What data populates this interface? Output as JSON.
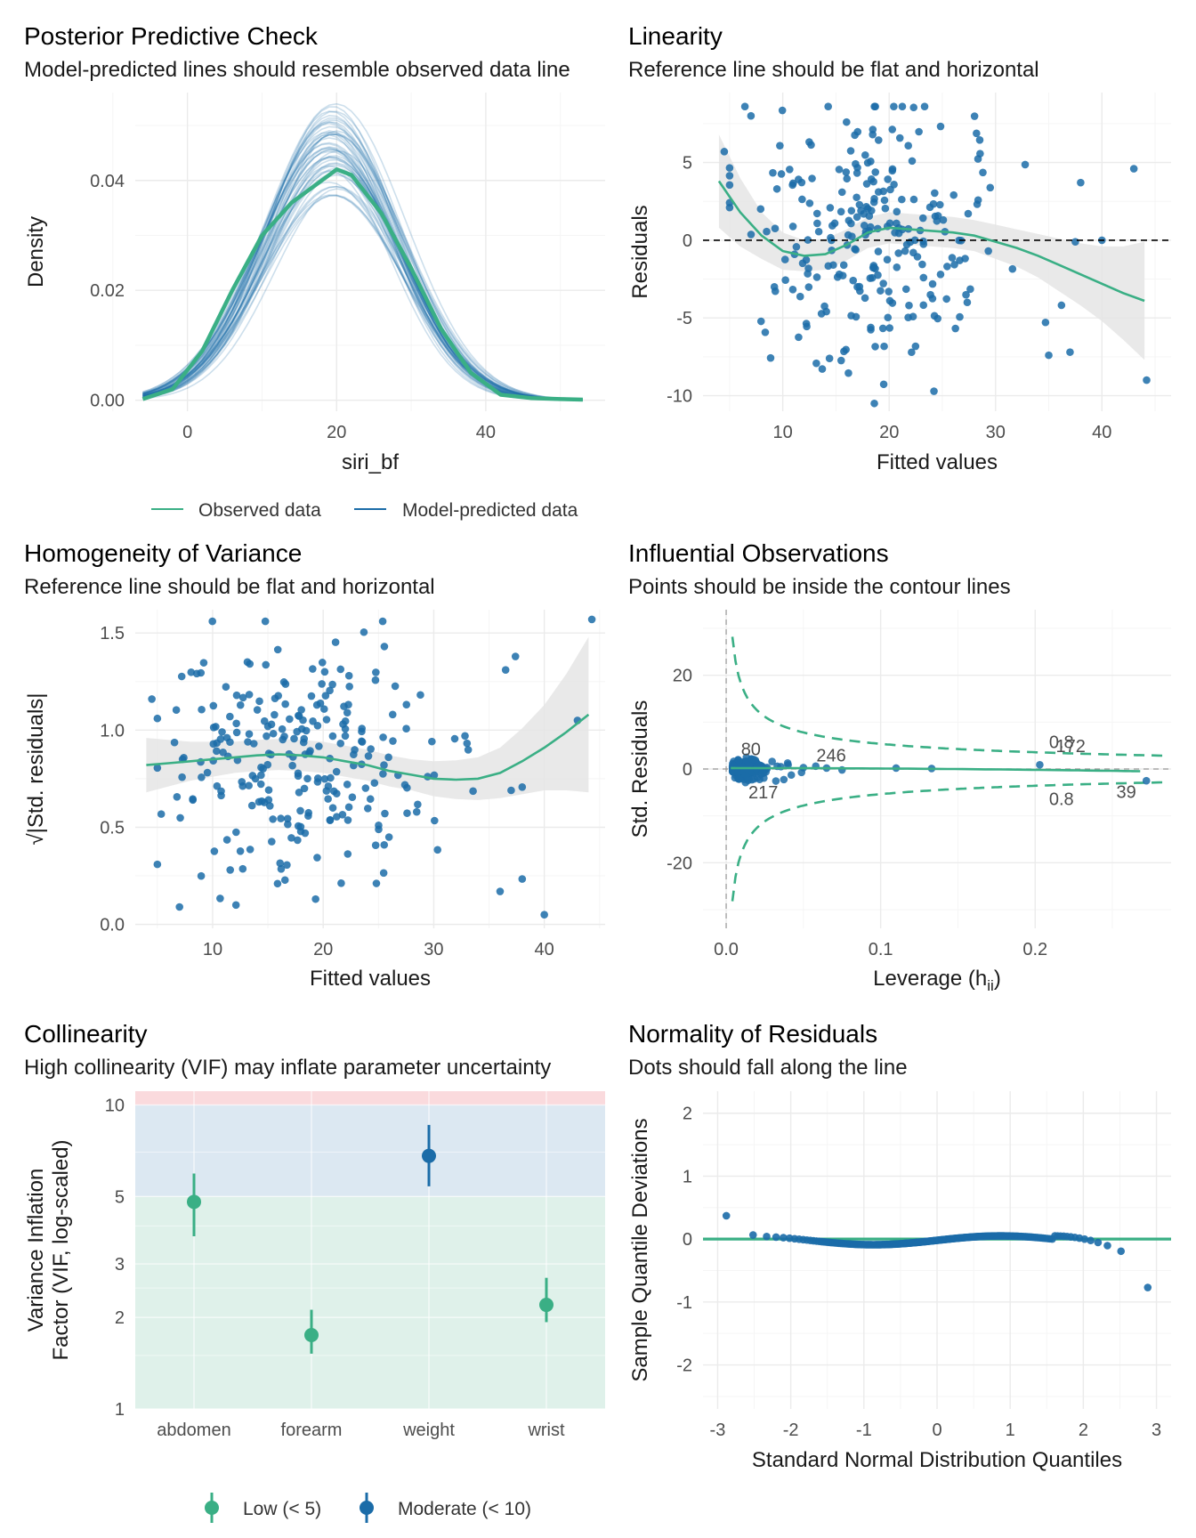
{
  "colors": {
    "green": "#3aaf85",
    "blue": "#1b6ca8",
    "band": "#e5e5e5",
    "red_zone": "#fadadd",
    "blue_zone": "#dce8f2",
    "green_zone": "#dff1ea"
  },
  "chart_data": [
    {
      "id": "ppc",
      "type": "line",
      "title": "Posterior Predictive Check",
      "subtitle": "Model-predicted lines should resemble observed data line",
      "xlabel": "siri_bf",
      "ylabel": "Density",
      "xlim": [
        -7,
        56
      ],
      "ylim": [
        -0.002,
        0.056
      ],
      "xticks": [
        0,
        20,
        40
      ],
      "yticks": [
        0.0,
        0.02,
        0.04
      ],
      "ytick_labels": [
        "0.00",
        "0.02",
        "0.04"
      ],
      "legend": {
        "position": "bottom",
        "entries": [
          "Observed data",
          "Model-predicted data"
        ]
      },
      "series": [
        {
          "name": "Observed data",
          "x": [
            -6,
            -2,
            2,
            6,
            10,
            14,
            18,
            20,
            22,
            26,
            30,
            34,
            38,
            42,
            46,
            50,
            53
          ],
          "y": [
            0.0002,
            0.002,
            0.009,
            0.02,
            0.03,
            0.036,
            0.04,
            0.042,
            0.041,
            0.034,
            0.024,
            0.013,
            0.005,
            0.001,
            0.0004,
            0.0002,
            0.0001
          ]
        },
        {
          "name": "Model-predicted data",
          "mean": 19.4,
          "sd_range": [
            8.3,
            9.6
          ],
          "peak_range": [
            0.037,
            0.054
          ],
          "n_lines": 50
        }
      ]
    },
    {
      "id": "lin",
      "type": "scatter",
      "title": "Linearity",
      "subtitle": "Reference line should be flat and horizontal",
      "xlabel": "Fitted values",
      "ylabel": "Residuals",
      "xlim": [
        2.5,
        46.5
      ],
      "ylim": [
        -11,
        9.5
      ],
      "xticks": [
        10,
        20,
        30,
        40
      ],
      "yticks": [
        -10,
        -5,
        0,
        5
      ],
      "reference_line": 0,
      "smooth": {
        "x": [
          4,
          6,
          8,
          10,
          12,
          14,
          16,
          18,
          20,
          22,
          24,
          26,
          28,
          30,
          32,
          34,
          36,
          38,
          40,
          42,
          44
        ],
        "y": [
          3.8,
          1.8,
          0.3,
          -0.7,
          -1.0,
          -0.9,
          -0.3,
          0.5,
          0.8,
          0.7,
          0.6,
          0.5,
          0.3,
          -0.1,
          -0.5,
          -1.0,
          -1.6,
          -2.2,
          -2.8,
          -3.4,
          -3.9
        ],
        "band": [
          3.0,
          2.2,
          1.5,
          1.2,
          1.0,
          1.0,
          1.0,
          1.0,
          1.0,
          1.0,
          1.0,
          1.0,
          1.0,
          1.1,
          1.2,
          1.4,
          1.7,
          2.0,
          2.4,
          3.0,
          3.8
        ]
      }
    },
    {
      "id": "hov",
      "type": "scatter",
      "title": "Homogeneity of Variance",
      "subtitle": "Reference line should be flat and horizontal",
      "xlabel": "Fitted values",
      "ylabel": "√|Std. residuals|",
      "xlim": [
        3,
        45.5
      ],
      "ylim": [
        -0.02,
        1.62
      ],
      "xticks": [
        10,
        20,
        30,
        40
      ],
      "yticks": [
        0.0,
        0.5,
        1.0,
        1.5
      ],
      "ytick_labels": [
        "0.0",
        "0.5",
        "1.0",
        "1.5"
      ],
      "smooth": {
        "x": [
          4,
          6,
          8,
          10,
          12,
          14,
          16,
          18,
          20,
          22,
          24,
          26,
          28,
          30,
          32,
          34,
          36,
          38,
          40,
          42,
          44
        ],
        "y": [
          0.82,
          0.83,
          0.84,
          0.85,
          0.86,
          0.87,
          0.875,
          0.87,
          0.86,
          0.84,
          0.82,
          0.79,
          0.77,
          0.75,
          0.745,
          0.75,
          0.78,
          0.84,
          0.91,
          0.99,
          1.08
        ],
        "band": [
          0.14,
          0.12,
          0.1,
          0.09,
          0.08,
          0.08,
          0.08,
          0.08,
          0.08,
          0.08,
          0.08,
          0.08,
          0.08,
          0.09,
          0.1,
          0.11,
          0.13,
          0.17,
          0.22,
          0.3,
          0.4
        ]
      }
    },
    {
      "id": "infl",
      "type": "scatter",
      "title": "Influential Observations",
      "subtitle": "Points should be inside the contour lines",
      "xlabel": "Leverage (h",
      "xlabel_sub": "ii",
      "xlabel_end": ")",
      "ylabel": "Std. Residuals",
      "xlim": [
        -0.015,
        0.288
      ],
      "ylim": [
        -34,
        34
      ],
      "xticks": [
        0.0,
        0.1,
        0.2
      ],
      "xtick_labels": [
        "0.0",
        "0.1",
        "0.2"
      ],
      "yticks": [
        -20,
        0,
        20
      ],
      "contour_label": "0.8",
      "labelled_points": [
        {
          "label": "80",
          "x": 0.016,
          "y": 2.9
        },
        {
          "label": "246",
          "x": 0.068,
          "y": 1.6
        },
        {
          "label": "217",
          "x": 0.024,
          "y": -6.3
        },
        {
          "label": "172",
          "x": 0.223,
          "y": 3.6
        },
        {
          "label": "39",
          "x": 0.259,
          "y": -6.2
        }
      ]
    },
    {
      "id": "vif",
      "type": "scatter",
      "title": "Collinearity",
      "subtitle": "High collinearity (VIF) may inflate parameter uncertainty",
      "ylabel_lines": [
        "Variance Inflation",
        "Factor (VIF, log-scaled)"
      ],
      "categories": [
        "abdomen",
        "forearm",
        "weight",
        "wrist"
      ],
      "values": [
        4.8,
        1.75,
        6.8,
        2.2
      ],
      "ci_low": [
        3.7,
        1.52,
        5.4,
        1.93
      ],
      "ci_high": [
        5.95,
        2.12,
        8.6,
        2.7
      ],
      "group": [
        "Low (< 5)",
        "Low (< 5)",
        "Moderate (< 10)",
        "Low (< 5)"
      ],
      "yscale": "log",
      "ylim": [
        1,
        11.1
      ],
      "yticks": [
        1,
        2,
        3,
        5,
        10
      ],
      "zones": [
        {
          "from": 1,
          "to": 5,
          "name": "low"
        },
        {
          "from": 5,
          "to": 10,
          "name": "moderate"
        },
        {
          "from": 10,
          "to": 11.1,
          "name": "high"
        }
      ],
      "legend": {
        "position": "bottom",
        "entries": [
          "Low (< 5)",
          "Moderate (< 10)"
        ]
      }
    },
    {
      "id": "qq",
      "type": "scatter",
      "title": "Normality of Residuals",
      "subtitle": "Dots should fall along the line",
      "xlabel": "Standard Normal Distribution Quantiles",
      "ylabel": "Sample Quantile Deviations",
      "xlim": [
        -3.2,
        3.2
      ],
      "ylim": [
        -2.7,
        2.35
      ],
      "xticks": [
        -3,
        -2,
        -1,
        0,
        1,
        2,
        3
      ],
      "yticks": [
        -2,
        -1,
        0,
        1,
        2
      ],
      "reference_line": 0
    }
  ]
}
